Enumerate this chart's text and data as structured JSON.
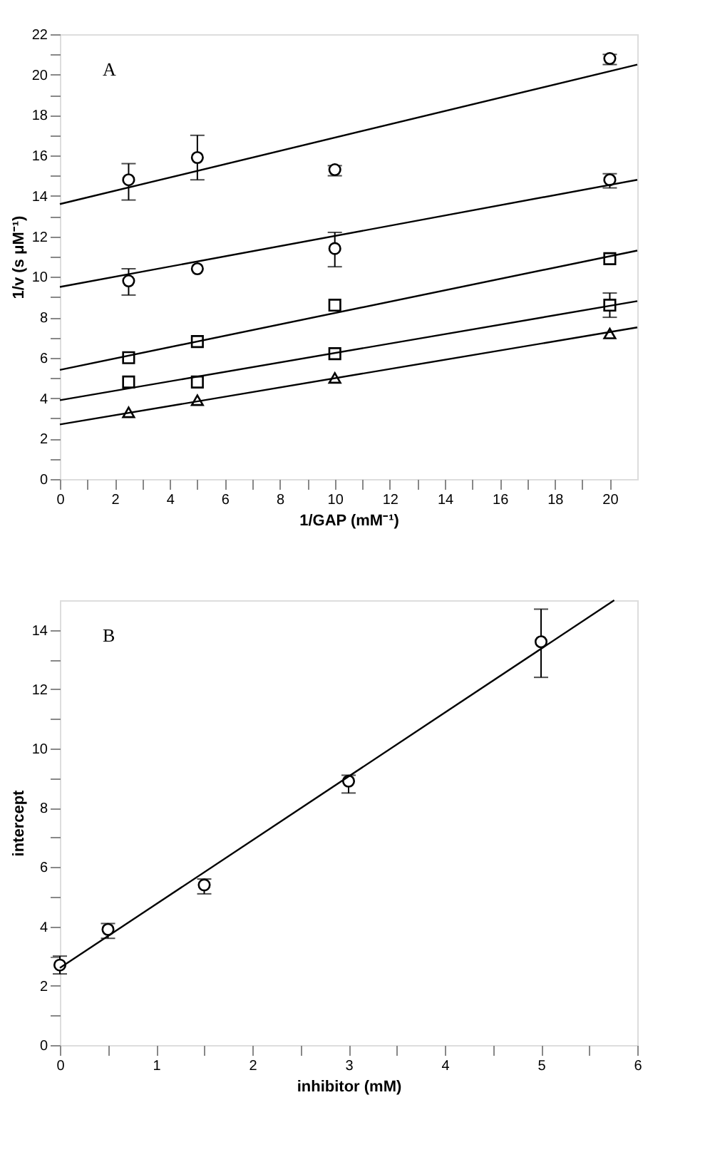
{
  "chart_data": [
    {
      "type": "scatter",
      "annotations": [
        "A"
      ],
      "xlabel": "1/GAP (mM⁻¹)",
      "ylabel": "1/v (s μM⁻¹)",
      "x": [
        2.5,
        5,
        10,
        20
      ],
      "xlim": [
        0,
        21
      ],
      "ylim": [
        0,
        22
      ],
      "xticks": [
        0,
        {
          "value": 1,
          "label": null
        },
        2,
        {
          "value": 3,
          "label": null
        },
        4,
        {
          "value": 5,
          "label": null
        },
        6,
        {
          "value": 7,
          "label": null
        },
        8,
        {
          "value": 9,
          "label": null
        },
        10,
        {
          "value": 11,
          "label": null
        },
        12,
        {
          "value": 13,
          "label": null
        },
        14,
        {
          "value": 15,
          "label": null
        },
        16,
        {
          "value": 17,
          "label": null
        },
        18,
        {
          "value": 19,
          "label": null
        },
        20
      ],
      "yticks": [
        0,
        {
          "value": 1,
          "label": null
        },
        2,
        {
          "value": 3,
          "label": null
        },
        4,
        {
          "value": 5,
          "label": null
        },
        6,
        {
          "value": 7,
          "label": null
        },
        8,
        {
          "value": 9,
          "label": null
        },
        10,
        {
          "value": 11,
          "label": null
        },
        12,
        {
          "value": 13,
          "label": null
        },
        14,
        {
          "value": 15,
          "label": null
        },
        16,
        {
          "value": 17,
          "label": null
        },
        18,
        {
          "value": 19,
          "label": null
        },
        20,
        {
          "value": 21,
          "label": null
        },
        22
      ],
      "grid": false,
      "series": [
        {
          "type": "scatter",
          "marker": "circle",
          "color": "#000000",
          "values": [
            14.8,
            15.9,
            15.3,
            20.8
          ],
          "errors": [
            [
              13.8,
              15.6
            ],
            [
              14.8,
              17.0
            ],
            [
              15.0,
              15.5
            ],
            [
              20.5,
              21.0
            ]
          ]
        },
        {
          "type": "scatter",
          "marker": "circle",
          "color": "#000000",
          "values": [
            9.8,
            10.4,
            11.4,
            14.8
          ],
          "errors": [
            [
              9.1,
              10.4
            ],
            null,
            [
              10.5,
              12.2
            ],
            [
              14.4,
              15.1
            ]
          ]
        },
        {
          "type": "scatter",
          "marker": "square",
          "color": "#000000",
          "values": [
            6.0,
            6.8,
            8.6,
            10.9
          ]
        },
        {
          "type": "scatter",
          "marker": "square",
          "color": "#000000",
          "values": [
            4.8,
            4.8,
            6.2,
            8.6
          ],
          "errors": [
            null,
            null,
            null,
            [
              8.0,
              9.2
            ]
          ]
        },
        {
          "type": "scatter",
          "marker": "triangle",
          "color": "#000000",
          "values": [
            3.3,
            3.9,
            5.0,
            7.2
          ]
        },
        {
          "type": "line",
          "marker": "none",
          "color": "#000000",
          "x": [
            0,
            21
          ],
          "values": [
            13.6,
            20.5
          ]
        },
        {
          "type": "line",
          "marker": "none",
          "color": "#000000",
          "x": [
            0,
            21
          ],
          "values": [
            9.5,
            14.8
          ]
        },
        {
          "type": "line",
          "marker": "none",
          "color": "#000000",
          "x": [
            0,
            21
          ],
          "values": [
            5.4,
            11.3
          ]
        },
        {
          "type": "line",
          "marker": "none",
          "color": "#000000",
          "x": [
            0,
            21
          ],
          "values": [
            3.9,
            8.8
          ]
        },
        {
          "type": "line",
          "marker": "none",
          "color": "#000000",
          "x": [
            0,
            21
          ],
          "values": [
            2.7,
            7.5
          ]
        }
      ]
    },
    {
      "type": "scatter",
      "annotations": [
        "B"
      ],
      "xlabel": "inhibitor (mM)",
      "ylabel": "intercept",
      "x": [
        0,
        0.5,
        1.5,
        3,
        5
      ],
      "xlim": [
        0,
        6
      ],
      "ylim": [
        0,
        15
      ],
      "xticks": [
        0,
        {
          "value": 0.5,
          "label": null
        },
        1,
        {
          "value": 1.5,
          "label": null
        },
        2,
        {
          "value": 2.5,
          "label": null
        },
        3,
        {
          "value": 3.5,
          "label": null
        },
        4,
        {
          "value": 4.5,
          "label": null
        },
        5,
        {
          "value": 5.5,
          "label": null
        },
        6
      ],
      "yticks": [
        0,
        {
          "value": 1,
          "label": null
        },
        2,
        {
          "value": 3,
          "label": null
        },
        4,
        {
          "value": 5,
          "label": null
        },
        6,
        {
          "value": 7,
          "label": null
        },
        8,
        {
          "value": 9,
          "label": null
        },
        10,
        {
          "value": 11,
          "label": null
        },
        12,
        {
          "value": 13,
          "label": null
        },
        14
      ],
      "grid": false,
      "series": [
        {
          "type": "scatter",
          "marker": "circle",
          "color": "#000000",
          "values": [
            2.7,
            3.9,
            5.4,
            8.9,
            13.6
          ],
          "errors": [
            [
              2.4,
              3.0
            ],
            [
              3.6,
              4.1
            ],
            [
              5.1,
              5.6
            ],
            [
              8.5,
              9.1
            ],
            [
              12.4,
              14.7
            ]
          ]
        },
        {
          "type": "line",
          "marker": "none",
          "color": "#000000",
          "x": [
            0,
            5.76
          ],
          "values": [
            2.6,
            15.0
          ]
        }
      ]
    }
  ]
}
